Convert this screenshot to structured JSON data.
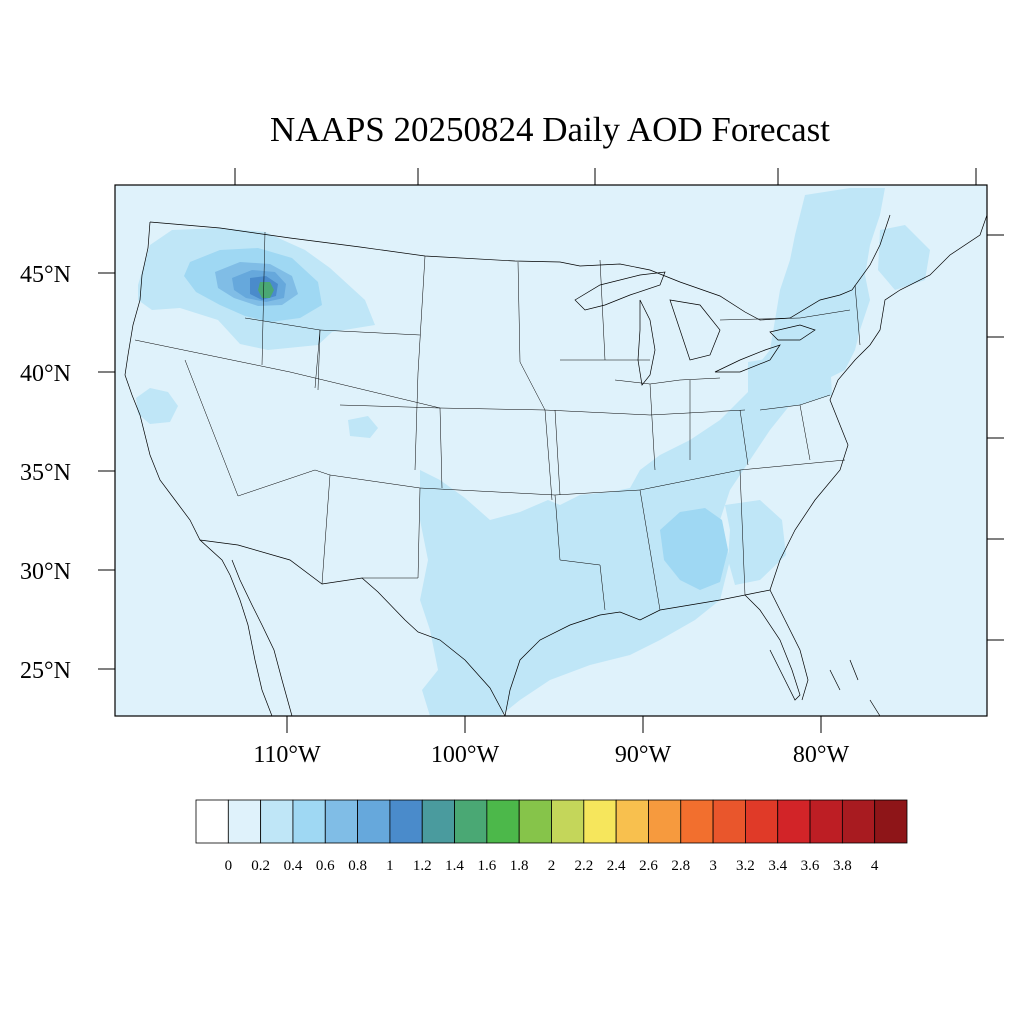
{
  "title": "NAAPS 20250824 Daily AOD Forecast",
  "map": {
    "projection": "lambert-conformal",
    "lat_labels": [
      "45°N",
      "40°N",
      "35°N",
      "30°N",
      "25°N"
    ],
    "lat_values": [
      45,
      40,
      35,
      30,
      25
    ],
    "lon_labels": [
      "110°W",
      "100°W",
      "90°W",
      "80°W"
    ],
    "lon_values": [
      -110,
      -100,
      -90,
      -80
    ],
    "background_aod_level": "0 - 0.2",
    "plume_locations": [
      {
        "region": "Idaho-Montana border",
        "peak_aod_range": "1.6 - 1.8"
      },
      {
        "region": "Gulf Coast / Texas",
        "peak_aod_range": "0.2 - 0.4"
      },
      {
        "region": "Alabama-Georgia",
        "peak_aod_range": "0.4 - 0.6"
      },
      {
        "region": "Eastern Canada / New England",
        "peak_aod_range": "0.2 - 0.4"
      }
    ]
  },
  "colorbar": {
    "labels": [
      "0",
      "0.2",
      "0.4",
      "0.6",
      "0.8",
      "1",
      "1.2",
      "1.4",
      "1.6",
      "1.8",
      "2",
      "2.2",
      "2.4",
      "2.6",
      "2.8",
      "3",
      "3.2",
      "3.4",
      "3.6",
      "3.8",
      "4"
    ],
    "colors": [
      "#ffffff",
      "#dff2fb",
      "#bfe6f7",
      "#9fd8f3",
      "#80bde6",
      "#66a8dc",
      "#4a8bcb",
      "#4a9b9e",
      "#4aa874",
      "#4cb84a",
      "#86c44a",
      "#c4d65a",
      "#f6e65c",
      "#f8c04e",
      "#f69a3e",
      "#f26f2e",
      "#e9562c",
      "#e03a28",
      "#d22428",
      "#bd1e24",
      "#a81b20",
      "#8e1518"
    ]
  },
  "colors": {
    "background_fill": "#dff2fb",
    "level_1": "#bfe6f7",
    "level_2": "#9fd8f3",
    "level_3": "#80bde6",
    "level_4": "#66a8dc",
    "level_5": "#4a8bcb",
    "level_8": "#4aa874"
  }
}
